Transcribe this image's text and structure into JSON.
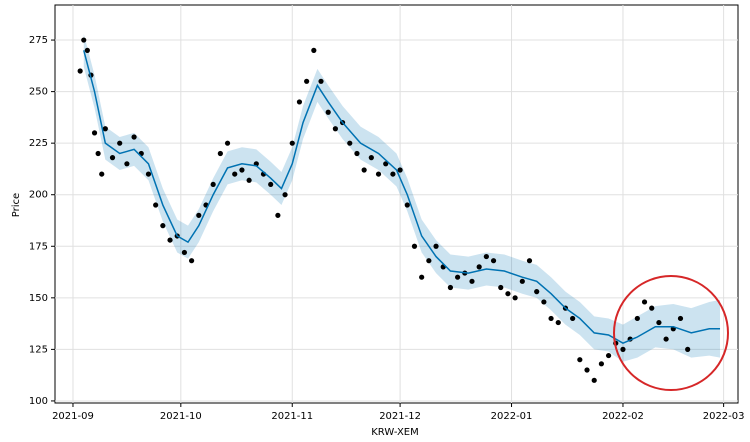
{
  "chart_data": {
    "type": "forecast",
    "xlabel": "KRW-XEM",
    "ylabel": "Price",
    "xlim": [
      "2021-08-27",
      "2022-03-05"
    ],
    "ylim": [
      99,
      292
    ],
    "xticks": [
      {
        "value": "2021-09-01",
        "label": "2021-09"
      },
      {
        "value": "2021-10-01",
        "label": "2021-10"
      },
      {
        "value": "2021-11-01",
        "label": "2021-11"
      },
      {
        "value": "2021-12-01",
        "label": "2021-12"
      },
      {
        "value": "2022-01-01",
        "label": "2022-01"
      },
      {
        "value": "2022-02-01",
        "label": "2022-02"
      },
      {
        "value": "2022-03-01",
        "label": "2022-03"
      }
    ],
    "yticks": [
      100,
      125,
      150,
      175,
      200,
      225,
      250,
      275
    ],
    "grid": true,
    "forecast": {
      "color": "#0072b2",
      "x": [
        "2021-09-04",
        "2021-09-07",
        "2021-09-10",
        "2021-09-14",
        "2021-09-18",
        "2021-09-22",
        "2021-09-26",
        "2021-09-30",
        "2021-10-03",
        "2021-10-06",
        "2021-10-10",
        "2021-10-14",
        "2021-10-18",
        "2021-10-22",
        "2021-10-26",
        "2021-10-29",
        "2021-11-01",
        "2021-11-04",
        "2021-11-08",
        "2021-11-11",
        "2021-11-15",
        "2021-11-20",
        "2021-11-25",
        "2021-11-30",
        "2021-12-03",
        "2021-12-07",
        "2021-12-11",
        "2021-12-15",
        "2021-12-20",
        "2021-12-25",
        "2021-12-30",
        "2022-01-04",
        "2022-01-08",
        "2022-01-12",
        "2022-01-16",
        "2022-01-20",
        "2022-01-24",
        "2022-01-28",
        "2022-02-01",
        "2022-02-05",
        "2022-02-10",
        "2022-02-15",
        "2022-02-20",
        "2022-02-25",
        "2022-02-28"
      ],
      "values": [
        270,
        250,
        225,
        220,
        222,
        215,
        195,
        180,
        177,
        185,
        200,
        213,
        215,
        214,
        208,
        203,
        215,
        235,
        253,
        245,
        235,
        225,
        220,
        212,
        200,
        180,
        170,
        163,
        162,
        164,
        163,
        160,
        158,
        152,
        145,
        140,
        133,
        132,
        128,
        131,
        136,
        136,
        133,
        135,
        135
      ],
      "upper": [
        278,
        258,
        233,
        228,
        230,
        223,
        203,
        188,
        185,
        193,
        208,
        221,
        223,
        222,
        216,
        211,
        223,
        243,
        261,
        253,
        243,
        233,
        228,
        220,
        208,
        188,
        178,
        171,
        170,
        172,
        171,
        168,
        166,
        160,
        153,
        148,
        141,
        140,
        137,
        141,
        146,
        147,
        145,
        148,
        149
      ],
      "lower": [
        262,
        242,
        217,
        212,
        214,
        207,
        187,
        172,
        169,
        177,
        192,
        205,
        207,
        206,
        200,
        195,
        207,
        227,
        245,
        237,
        227,
        217,
        212,
        204,
        192,
        172,
        162,
        155,
        154,
        156,
        155,
        152,
        150,
        144,
        137,
        132,
        125,
        124,
        119,
        121,
        126,
        125,
        121,
        122,
        121
      ]
    },
    "observed": {
      "color": "#000000",
      "x": [
        "2021-09-03",
        "2021-09-04",
        "2021-09-05",
        "2021-09-06",
        "2021-09-07",
        "2021-09-08",
        "2021-09-09",
        "2021-09-10",
        "2021-09-12",
        "2021-09-14",
        "2021-09-16",
        "2021-09-18",
        "2021-09-20",
        "2021-09-22",
        "2021-09-24",
        "2021-09-26",
        "2021-09-28",
        "2021-09-30",
        "2021-10-02",
        "2021-10-04",
        "2021-10-06",
        "2021-10-08",
        "2021-10-10",
        "2021-10-12",
        "2021-10-14",
        "2021-10-16",
        "2021-10-18",
        "2021-10-20",
        "2021-10-22",
        "2021-10-24",
        "2021-10-26",
        "2021-10-28",
        "2021-10-30",
        "2021-11-01",
        "2021-11-03",
        "2021-11-05",
        "2021-11-07",
        "2021-11-09",
        "2021-11-11",
        "2021-11-13",
        "2021-11-15",
        "2021-11-17",
        "2021-11-19",
        "2021-11-21",
        "2021-11-23",
        "2021-11-25",
        "2021-11-27",
        "2021-11-29",
        "2021-12-01",
        "2021-12-03",
        "2021-12-05",
        "2021-12-07",
        "2021-12-09",
        "2021-12-11",
        "2021-12-13",
        "2021-12-15",
        "2021-12-17",
        "2021-12-19",
        "2021-12-21",
        "2021-12-23",
        "2021-12-25",
        "2021-12-27",
        "2021-12-29",
        "2021-12-31",
        "2022-01-02",
        "2022-01-04",
        "2022-01-06",
        "2022-01-08",
        "2022-01-10",
        "2022-01-12",
        "2022-01-14",
        "2022-01-16",
        "2022-01-18",
        "2022-01-20",
        "2022-01-22",
        "2022-01-24",
        "2022-01-26",
        "2022-01-28",
        "2022-01-30",
        "2022-02-01",
        "2022-02-03",
        "2022-02-05",
        "2022-02-07",
        "2022-02-09",
        "2022-02-11",
        "2022-02-13",
        "2022-02-15",
        "2022-02-17",
        "2022-02-19"
      ],
      "values": [
        260,
        275,
        270,
        258,
        230,
        220,
        210,
        232,
        218,
        225,
        215,
        228,
        220,
        210,
        195,
        185,
        178,
        180,
        172,
        168,
        190,
        195,
        205,
        220,
        225,
        210,
        212,
        207,
        215,
        210,
        205,
        190,
        200,
        225,
        245,
        255,
        270,
        255,
        240,
        232,
        235,
        225,
        220,
        212,
        218,
        210,
        215,
        210,
        212,
        195,
        175,
        160,
        168,
        175,
        165,
        155,
        160,
        162,
        158,
        165,
        170,
        168,
        155,
        152,
        150,
        158,
        168,
        153,
        148,
        140,
        138,
        145,
        140,
        120,
        115,
        110,
        118,
        122,
        128,
        125,
        130,
        140,
        148,
        145,
        138,
        130,
        135,
        140,
        125
      ]
    }
  }
}
